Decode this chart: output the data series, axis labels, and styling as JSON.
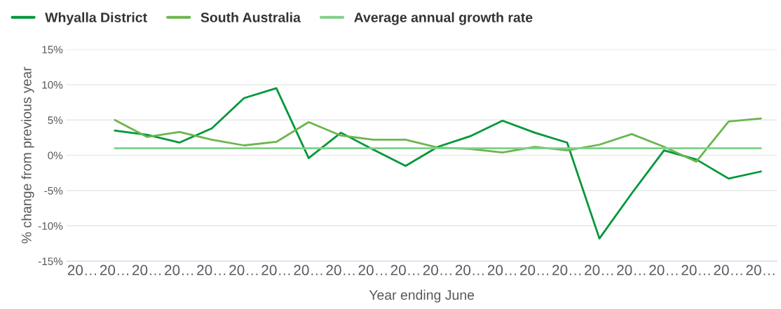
{
  "chart_data": {
    "type": "line",
    "xlabel": "Year ending June",
    "ylabel": "% change from previous year",
    "categories": [
      "20…",
      "20…",
      "20…",
      "20…",
      "20…",
      "20…",
      "20…",
      "20…",
      "20…",
      "20…",
      "20…",
      "20…",
      "20…",
      "20…",
      "20…",
      "20…",
      "20…",
      "20…",
      "20…",
      "20…",
      "20…",
      "20…"
    ],
    "series": [
      {
        "name": "Whyalla District",
        "color": "#00973a",
        "values": [
          null,
          3.5,
          2.9,
          1.8,
          3.8,
          8.1,
          9.5,
          -0.4,
          3.2,
          0.8,
          -1.5,
          1.2,
          2.7,
          4.9,
          3.2,
          1.8,
          -11.8,
          -5.4,
          0.7,
          -0.6,
          -3.3,
          -2.3
        ]
      },
      {
        "name": "South Australia",
        "color": "#6ab64f",
        "values": [
          null,
          5.0,
          2.6,
          3.3,
          2.2,
          1.4,
          1.9,
          4.7,
          2.8,
          2.2,
          2.2,
          1.1,
          0.9,
          0.4,
          1.2,
          0.7,
          1.5,
          3.0,
          1.2,
          -0.9,
          4.8,
          5.2
        ]
      },
      {
        "name": "Average annual growth rate",
        "color": "#7fd08a",
        "values": [
          null,
          1.0,
          1.0,
          1.0,
          1.0,
          1.0,
          1.0,
          1.0,
          1.0,
          1.0,
          1.0,
          1.0,
          1.0,
          1.0,
          1.0,
          1.0,
          1.0,
          1.0,
          1.0,
          1.0,
          1.0,
          1.0
        ]
      }
    ],
    "ylim": [
      -15,
      15
    ],
    "yticks": [
      {
        "value": -15,
        "label": "-15%"
      },
      {
        "value": -10,
        "label": "-10%"
      },
      {
        "value": -5,
        "label": "-5%"
      },
      {
        "value": 0,
        "label": "0%"
      },
      {
        "value": 5,
        "label": "5%"
      },
      {
        "value": 10,
        "label": "10%"
      },
      {
        "value": 15,
        "label": "15%"
      }
    ],
    "grid": "y",
    "legend": "top left",
    "marker": "none",
    "line_style": "solid"
  }
}
